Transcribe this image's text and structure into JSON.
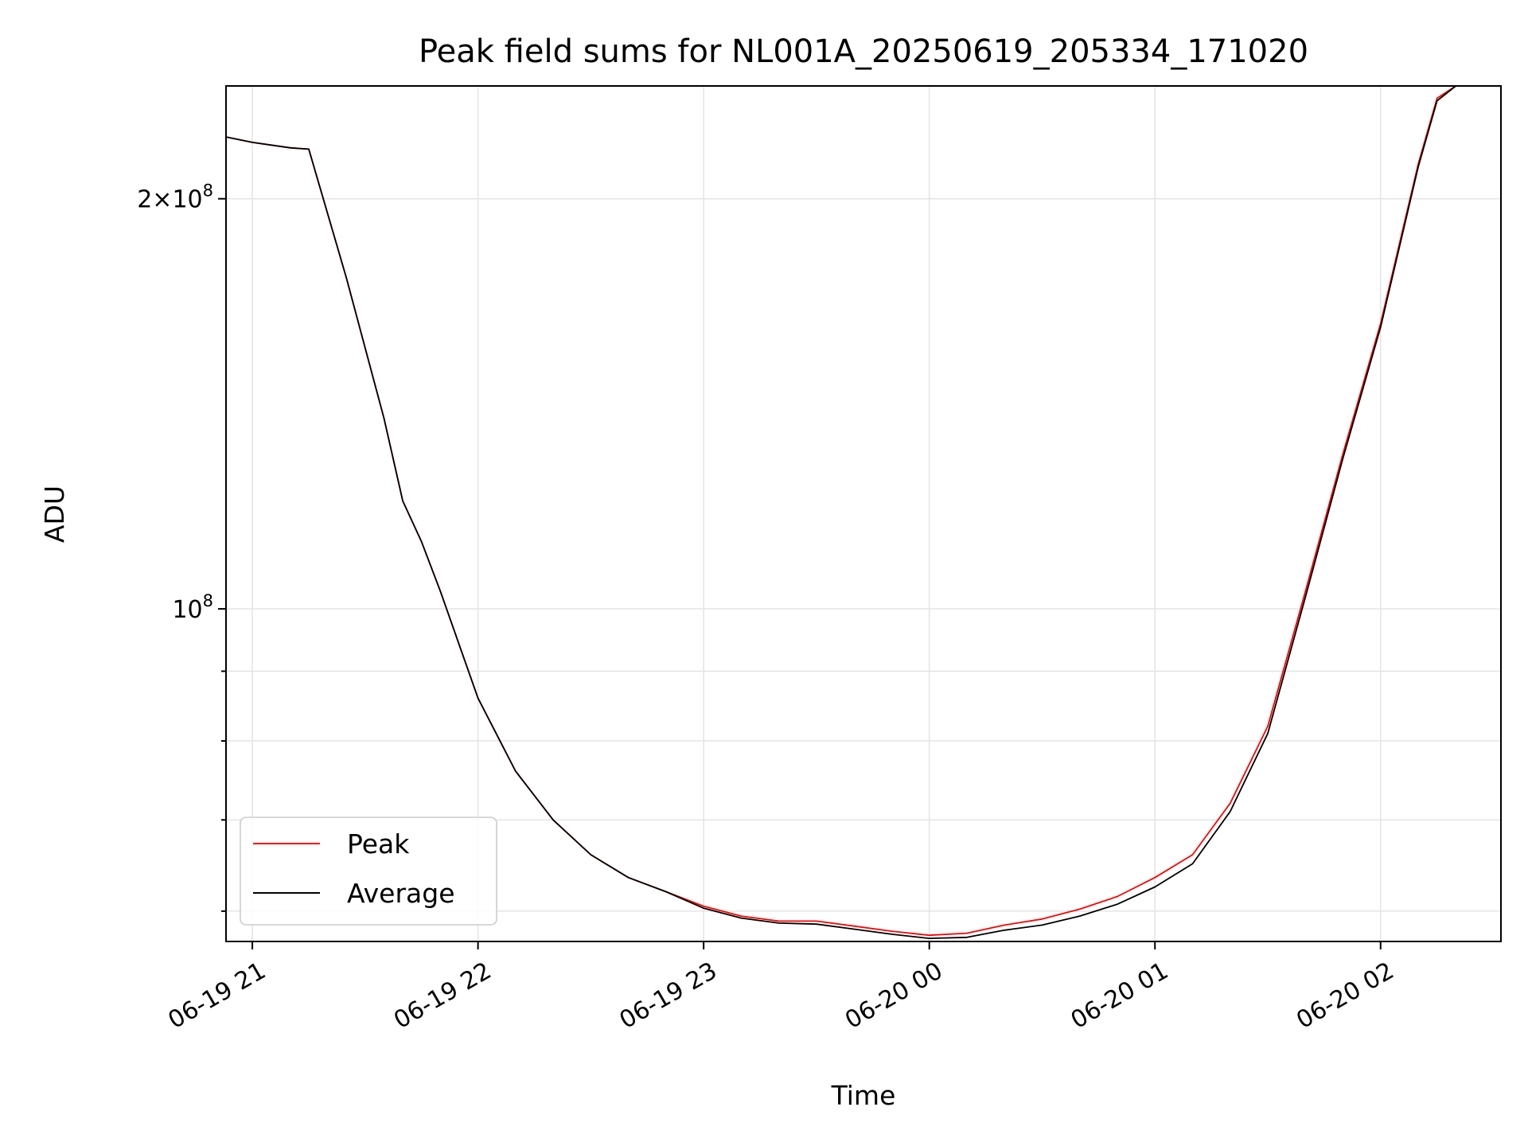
{
  "chart_data": {
    "type": "line",
    "title": "Peak field sums for NL001A_20250619_205334_171020",
    "xlabel": "Time",
    "ylabel": "ADU",
    "yscale": "log",
    "grid": true,
    "legend_position": "lower-left",
    "xlim": [
      "2025-06-19 20:53",
      "2025-06-20 02:32"
    ],
    "ylim": [
      57000000,
      242000000
    ],
    "x_ticks": [
      "06-19 21",
      "06-19 22",
      "06-19 23",
      "06-20 00",
      "06-20 01",
      "06-20 02"
    ],
    "y_ticks": [
      {
        "value": 200000000,
        "label": "2 × 10^8",
        "mantissa": "2",
        "exponent": "8"
      },
      {
        "value": 100000000,
        "label": "10^8",
        "mantissa": "",
        "exponent": "8"
      }
    ],
    "y_minor_ticks": [
      60000000,
      70000000,
      80000000,
      90000000
    ],
    "series": [
      {
        "name": "Peak",
        "color": "#ff0000",
        "x": [
          "2025-06-19 20:53",
          "2025-06-19 21:00",
          "2025-06-19 21:10",
          "2025-06-19 21:15",
          "2025-06-19 21:25",
          "2025-06-19 21:35",
          "2025-06-19 21:40",
          "2025-06-19 21:45",
          "2025-06-19 21:50",
          "2025-06-19 22:00",
          "2025-06-19 22:10",
          "2025-06-19 22:20",
          "2025-06-19 22:30",
          "2025-06-19 22:40",
          "2025-06-19 22:50",
          "2025-06-19 23:00",
          "2025-06-19 23:10",
          "2025-06-19 23:20",
          "2025-06-19 23:30",
          "2025-06-19 23:40",
          "2025-06-19 23:50",
          "2025-06-20 00:00",
          "2025-06-20 00:10",
          "2025-06-20 00:20",
          "2025-06-20 00:30",
          "2025-06-20 00:40",
          "2025-06-20 00:50",
          "2025-06-20 01:00",
          "2025-06-20 01:10",
          "2025-06-20 01:20",
          "2025-06-20 01:30",
          "2025-06-20 01:40",
          "2025-06-20 01:50",
          "2025-06-20 02:00",
          "2025-06-20 02:10",
          "2025-06-20 02:15",
          "2025-06-20 02:20"
        ],
        "y": [
          222000000,
          220000000,
          218000000,
          217500000,
          175000000,
          138000000,
          120000000,
          112000000,
          103000000,
          86000000,
          76000000,
          70000000,
          66000000,
          63500000,
          62000000,
          60500000,
          59500000,
          59000000,
          59000000,
          58500000,
          58000000,
          57600000,
          57800000,
          58600000,
          59200000,
          60200000,
          61500000,
          63500000,
          66000000,
          72000000,
          82000000,
          103000000,
          130000000,
          162000000,
          212000000,
          237000000,
          242000000
        ]
      },
      {
        "name": "Average",
        "color": "#000000",
        "x": [
          "2025-06-19 20:53",
          "2025-06-19 21:00",
          "2025-06-19 21:10",
          "2025-06-19 21:15",
          "2025-06-19 21:25",
          "2025-06-19 21:35",
          "2025-06-19 21:40",
          "2025-06-19 21:45",
          "2025-06-19 21:50",
          "2025-06-19 22:00",
          "2025-06-19 22:10",
          "2025-06-19 22:20",
          "2025-06-19 22:30",
          "2025-06-19 22:40",
          "2025-06-19 22:50",
          "2025-06-19 23:00",
          "2025-06-19 23:10",
          "2025-06-19 23:20",
          "2025-06-19 23:30",
          "2025-06-19 23:40",
          "2025-06-19 23:50",
          "2025-06-20 00:00",
          "2025-06-20 00:10",
          "2025-06-20 00:20",
          "2025-06-20 00:30",
          "2025-06-20 00:40",
          "2025-06-20 00:50",
          "2025-06-20 01:00",
          "2025-06-20 01:10",
          "2025-06-20 01:20",
          "2025-06-20 01:30",
          "2025-06-20 01:40",
          "2025-06-20 01:50",
          "2025-06-20 02:00",
          "2025-06-20 02:10",
          "2025-06-20 02:15",
          "2025-06-20 02:20"
        ],
        "y": [
          222000000,
          220000000,
          218000000,
          217500000,
          175000000,
          138000000,
          120000000,
          112000000,
          103000000,
          86000000,
          76000000,
          70000000,
          66000000,
          63500000,
          62000000,
          60300000,
          59300000,
          58800000,
          58700000,
          58200000,
          57700000,
          57300000,
          57400000,
          58100000,
          58600000,
          59500000,
          60700000,
          62500000,
          65000000,
          71000000,
          81000000,
          102000000,
          129000000,
          161000000,
          211000000,
          236000000,
          242000000
        ]
      }
    ]
  }
}
